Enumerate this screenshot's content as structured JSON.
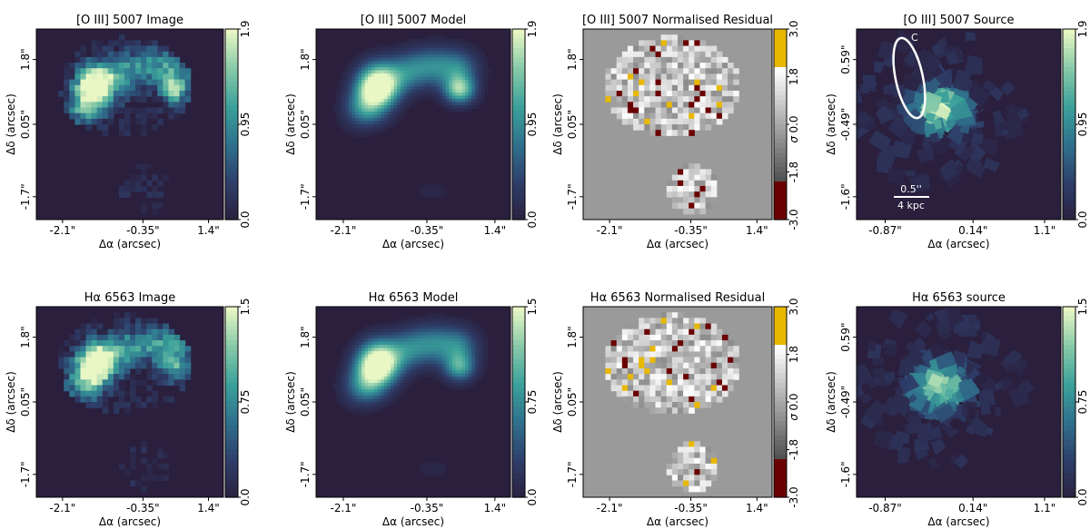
{
  "figure": {
    "colormap_stops": [
      "#2a1f3d",
      "#2e3d68",
      "#2f6f8c",
      "#3aa09a",
      "#86c9a8",
      "#e8f7c4"
    ],
    "residual_colors": {
      "background": "#9a9a9a",
      "low": "#6b0000",
      "high": "#e8b800",
      "mid_light": "#ffffff",
      "mid_dark": "#4a4a4a"
    },
    "ellipse_label": "C",
    "scalebar": {
      "top_label": "0.5''",
      "bottom_label": "4 kpc"
    }
  },
  "chart_data": [
    {
      "type": "heatmap",
      "title": "[O III] 5007 Image",
      "kind": "image",
      "object": "oiii",
      "xticks": [
        "-2.1\"",
        "-0.35\"",
        "1.4\""
      ],
      "yticks": [
        "1.8\"",
        "0.05\"",
        "-1.7\""
      ],
      "xlabel": "Δα (arcsec)",
      "ylabel": "Δδ (arcsec)",
      "colorbar": {
        "ticks": [
          "1.9",
          "0.95",
          "0.0"
        ],
        "range": [
          0,
          1.9
        ],
        "label": ""
      }
    },
    {
      "type": "heatmap",
      "title": "[O III] 5007 Model",
      "kind": "model",
      "object": "oiii",
      "xticks": [
        "-2.1\"",
        "-0.35\"",
        "1.4\""
      ],
      "yticks": [
        "1.8\"",
        "0.05\"",
        "-1.7\""
      ],
      "xlabel": "Δα (arcsec)",
      "ylabel": "Δδ (arcsec)",
      "colorbar": {
        "ticks": [
          "1.9",
          "0.95",
          "0.0"
        ],
        "range": [
          0,
          1.9
        ],
        "label": ""
      }
    },
    {
      "type": "heatmap",
      "title": "[O III] 5007 Normalised Residual",
      "kind": "residual",
      "object": "oiii",
      "xticks": [
        "-2.1\"",
        "-0.35\"",
        "1.4\""
      ],
      "yticks": [
        "1.8\"",
        "0.05\"",
        "-1.7\""
      ],
      "xlabel": "Δα (arcsec)",
      "ylabel": "Δδ (arcsec)",
      "colorbar": {
        "ticks": [
          "3.0",
          "1.8",
          "0.0",
          "-1.8",
          "-3.0"
        ],
        "range": [
          -3,
          3
        ],
        "label": "σ"
      }
    },
    {
      "type": "heatmap",
      "title": "[O III] 5007 Source",
      "kind": "source",
      "object": "oiii",
      "xticks": [
        "-0.87\"",
        "0.14\"",
        "1.1\""
      ],
      "yticks": [
        "0.59\"",
        "-0.49\"",
        "-1.6\""
      ],
      "xlabel": "Δα (arcsec)",
      "ylabel": "Δδ (arcsec)",
      "colorbar": {
        "ticks": [
          "1.9",
          "0.95",
          "0.0"
        ],
        "range": [
          0,
          1.9
        ],
        "label": ""
      },
      "annotations": [
        "C",
        "0.5''",
        "4 kpc"
      ]
    },
    {
      "type": "heatmap",
      "title": "Hα 6563 Image",
      "kind": "image",
      "object": "ha",
      "xticks": [
        "-2.1\"",
        "-0.35\"",
        "1.4\""
      ],
      "yticks": [
        "1.8\"",
        "0.05\"",
        "-1.7\""
      ],
      "xlabel": "Δα (arcsec)",
      "ylabel": "Δδ (arcsec)",
      "colorbar": {
        "ticks": [
          "1.5",
          "0.75",
          "0.0"
        ],
        "range": [
          0,
          1.5
        ],
        "label": ""
      }
    },
    {
      "type": "heatmap",
      "title": "Hα 6563 Model",
      "kind": "model",
      "object": "ha",
      "xticks": [
        "-2.1\"",
        "-0.35\"",
        "1.4\""
      ],
      "yticks": [
        "1.8\"",
        "0.05\"",
        "-1.7\""
      ],
      "xlabel": "Δα (arcsec)",
      "ylabel": "Δδ (arcsec)",
      "colorbar": {
        "ticks": [
          "1.5",
          "0.75",
          "0.0"
        ],
        "range": [
          0,
          1.5
        ],
        "label": ""
      }
    },
    {
      "type": "heatmap",
      "title": "Hα 6563 Normalised Residual",
      "kind": "residual",
      "object": "ha",
      "xticks": [
        "-2.1\"",
        "-0.35\"",
        "1.4\""
      ],
      "yticks": [
        "1.8\"",
        "0.05\"",
        "-1.7\""
      ],
      "xlabel": "Δα (arcsec)",
      "ylabel": "Δδ (arcsec)",
      "colorbar": {
        "ticks": [
          "3.0",
          "1.8",
          "0.0",
          "-1.8",
          "-3.0"
        ],
        "range": [
          -3,
          3
        ],
        "label": "σ"
      }
    },
    {
      "type": "heatmap",
      "title": "Hα 6563 source",
      "kind": "source",
      "object": "ha",
      "xticks": [
        "-0.87\"",
        "0.14\"",
        "1.1\""
      ],
      "yticks": [
        "0.59\"",
        "-0.49\"",
        "-1.6\""
      ],
      "xlabel": "Δα (arcsec)",
      "ylabel": "Δδ (arcsec)",
      "colorbar": {
        "ticks": [
          "1.5",
          "0.75",
          "0.0"
        ],
        "range": [
          0,
          1.5
        ],
        "label": ""
      }
    }
  ]
}
